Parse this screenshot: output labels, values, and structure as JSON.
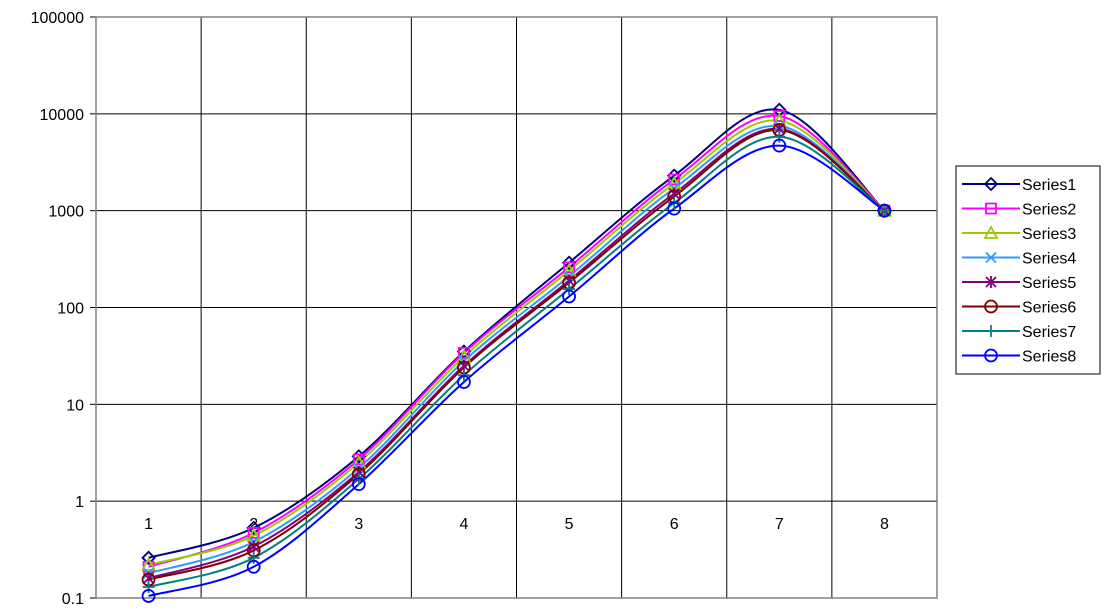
{
  "chart_data": {
    "type": "line",
    "title": "",
    "xlabel": "",
    "ylabel": "",
    "y_scale": "log",
    "ylim": [
      0.1,
      100000
    ],
    "y_ticks": [
      "0.1",
      "1",
      "10",
      "100",
      "1000",
      "10000",
      "100000"
    ],
    "categories": [
      "1",
      "2",
      "3",
      "4",
      "5",
      "6",
      "7",
      "8"
    ],
    "grid": true,
    "legend_position": "right",
    "series": [
      {
        "name": "Series1",
        "color": "#000080",
        "marker": "diamond",
        "values": [
          0.26,
          0.53,
          2.9,
          35,
          290,
          2300,
          11000,
          1000
        ]
      },
      {
        "name": "Series2",
        "color": "#FF00FF",
        "marker": "square",
        "values": [
          0.21,
          0.47,
          2.7,
          34,
          260,
          2100,
          9500,
          1000
        ]
      },
      {
        "name": "Series3",
        "color": "#99CC00",
        "marker": "triangle",
        "values": [
          0.22,
          0.44,
          2.5,
          31,
          240,
          1900,
          8500,
          1000
        ]
      },
      {
        "name": "Series4",
        "color": "#3399FF",
        "marker": "x",
        "values": [
          0.18,
          0.38,
          2.2,
          28,
          210,
          1700,
          7500,
          1000
        ]
      },
      {
        "name": "Series5",
        "color": "#800080",
        "marker": "asterisk",
        "values": [
          0.16,
          0.34,
          2.0,
          25,
          190,
          1500,
          7000,
          1000
        ]
      },
      {
        "name": "Series6",
        "color": "#800000",
        "marker": "circle",
        "values": [
          0.155,
          0.31,
          1.9,
          24,
          180,
          1400,
          6800,
          1000
        ]
      },
      {
        "name": "Series7",
        "color": "#008080",
        "marker": "plus",
        "values": [
          0.13,
          0.26,
          1.7,
          20,
          155,
          1200,
          5800,
          1000
        ]
      },
      {
        "name": "Series8",
        "color": "#0000FF",
        "marker": "circle",
        "values": [
          0.105,
          0.21,
          1.5,
          17,
          130,
          1050,
          4700,
          1000
        ]
      }
    ]
  }
}
